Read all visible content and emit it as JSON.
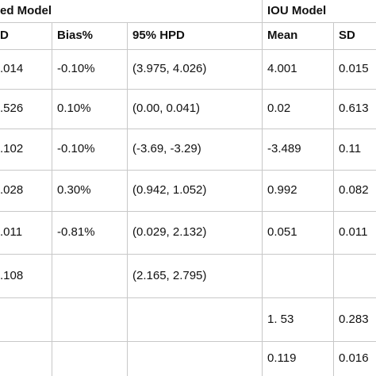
{
  "table": {
    "group_headers": [
      "ed Model",
      "IOU Model"
    ],
    "columns": [
      "D",
      "Bias%",
      "95% HPD",
      "Mean",
      "SD"
    ],
    "rows": [
      [
        ".014",
        "-0.10%",
        "(3.975, 4.026)",
        "4.001",
        "0.015"
      ],
      [
        ".526",
        "0.10%",
        "(0.00, 0.041)",
        "0.02",
        "0.613"
      ],
      [
        ".102",
        "-0.10%",
        "(-3.69, -3.29)",
        "-3.489",
        "0.11"
      ],
      [
        ".028",
        "0.30%",
        "(0.942, 1.052)",
        "0.992",
        "0.082"
      ],
      [
        ".011",
        "-0.81%",
        "(0.029, 2.132)",
        "0.051",
        "0.011"
      ],
      [
        ".108",
        null,
        "(2.165, 2.795)",
        null,
        null
      ],
      [
        null,
        null,
        null,
        "1. 53",
        "0.283"
      ],
      [
        null,
        null,
        null,
        "0.119",
        "0.016"
      ]
    ]
  }
}
